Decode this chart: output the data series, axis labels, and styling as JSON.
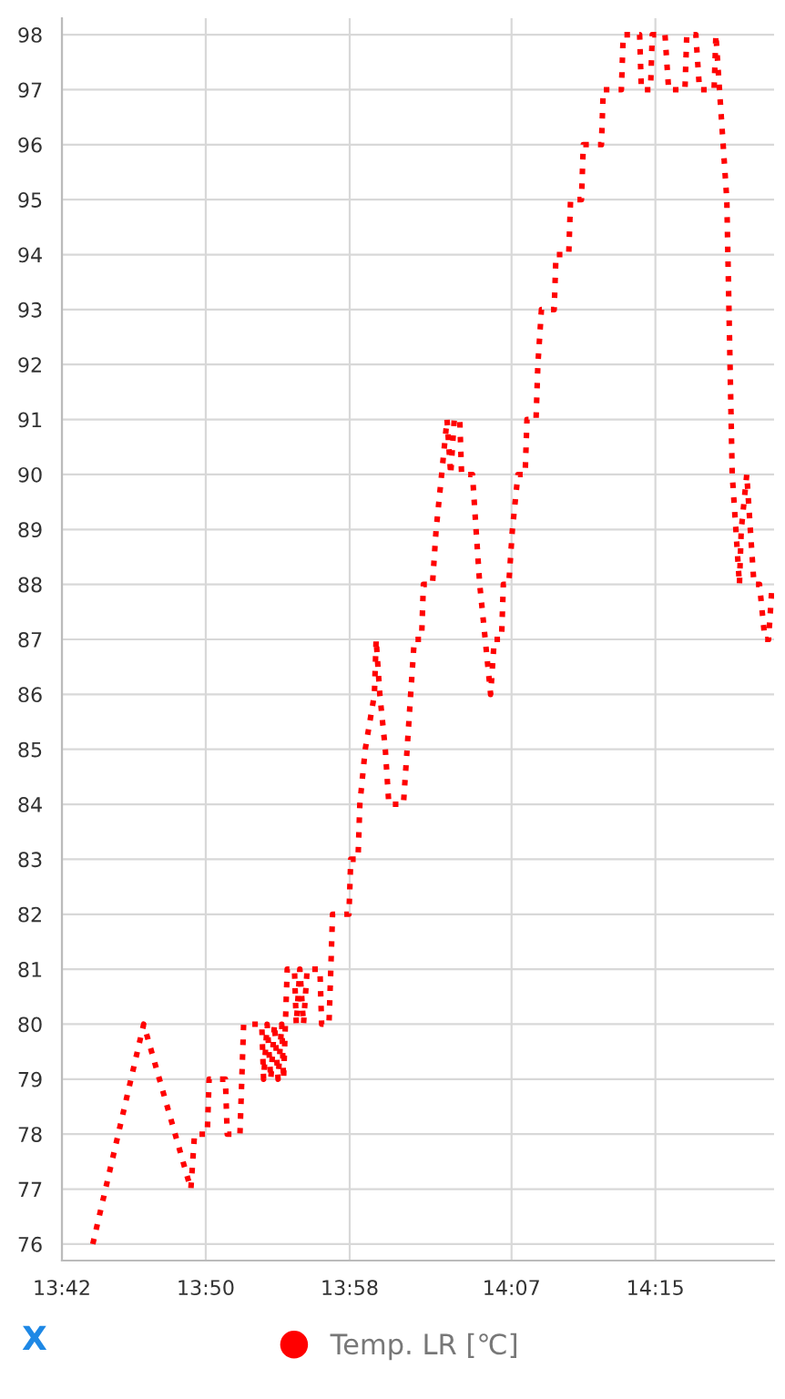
{
  "chart_data": {
    "type": "line",
    "x": [
      13.7286,
      13.7758,
      13.8195,
      13.8229,
      13.8347,
      13.8364,
      13.8515,
      13.8532,
      13.865,
      13.8684,
      13.8852,
      13.8869,
      13.8902,
      13.8936,
      13.897,
      13.9003,
      13.9037,
      13.9054,
      13.9088,
      13.9155,
      13.9172,
      13.9205,
      13.9239,
      13.9273,
      13.9391,
      13.9407,
      13.9475,
      13.9492,
      13.9508,
      13.966,
      13.9677,
      13.9744,
      13.9761,
      13.9811,
      13.9896,
      13.9912,
      13.9946,
      13.9997,
      14.003,
      14.0165,
      14.0199,
      14.0232,
      14.0266,
      14.0333,
      14.035,
      14.0434,
      14.0468,
      14.0519,
      14.0569,
      14.0603,
      14.0636,
      14.0687,
      14.0704,
      14.0805,
      14.0838,
      14.0872,
      14.0923,
      14.0973,
      14.1007,
      14.1074,
      14.1091,
      14.1141,
      14.1175,
      14.1226,
      14.1293,
      14.131,
      14.1394,
      14.1411,
      14.1444,
      14.1562,
      14.1579,
      14.1697,
      14.1714,
      14.1815,
      14.1832,
      14.2,
      14.2017,
      14.2185,
      14.2202,
      14.2354,
      14.237,
      14.2455,
      14.2471,
      14.2589,
      14.2623,
      14.2774,
      14.2791,
      14.2875,
      14.2909,
      14.3044,
      14.3061,
      14.3094,
      14.3128,
      14.3162,
      14.3212,
      14.3246,
      14.3279,
      14.3296,
      14.3347,
      14.338,
      14.3414,
      14.3465,
      14.3515,
      14.3549,
      14.3582
    ],
    "series": [
      {
        "name": "Temp. LR [℃]",
        "color": "#ff0000",
        "values": [
          76,
          80,
          77,
          78,
          78,
          79,
          79,
          78,
          78,
          80,
          80,
          79,
          80,
          79,
          80,
          79,
          80,
          79,
          81,
          81,
          80,
          81,
          80,
          81,
          81,
          80,
          80,
          81,
          82,
          82,
          83,
          83,
          84,
          85,
          86,
          87,
          86,
          85,
          84,
          84,
          85,
          86,
          87,
          87,
          88,
          88,
          89,
          90,
          91,
          90,
          91,
          91,
          90,
          90,
          89,
          88,
          87,
          86,
          87,
          87,
          88,
          88,
          89,
          90,
          90,
          91,
          91,
          92,
          93,
          93,
          94,
          94,
          95,
          95,
          96,
          96,
          97,
          97,
          98,
          98,
          97,
          97,
          98,
          98,
          97,
          97,
          98,
          98,
          97,
          97,
          98,
          97,
          96,
          95,
          90,
          89,
          88,
          89,
          90,
          89,
          88,
          88,
          87,
          87,
          88
        ]
      }
    ],
    "xlim": [
      13.7,
      14.36
    ],
    "xticks": [
      {
        "value": 13.7,
        "label": "13:42"
      },
      {
        "value": 13.8333,
        "label": "13:50"
      },
      {
        "value": 13.9667,
        "label": "13:58"
      },
      {
        "value": 14.1167,
        "label": "14:07"
      },
      {
        "value": 14.25,
        "label": "14:15"
      }
    ],
    "ylim": [
      75.7,
      98.3
    ],
    "yticks": [
      76,
      77,
      78,
      79,
      80,
      81,
      82,
      83,
      84,
      85,
      86,
      87,
      88,
      89,
      90,
      91,
      92,
      93,
      94,
      95,
      96,
      97,
      98
    ],
    "grid": true,
    "legend": "bottom",
    "marker": "none",
    "line_style": "dotted",
    "annotations": [
      "X"
    ]
  }
}
